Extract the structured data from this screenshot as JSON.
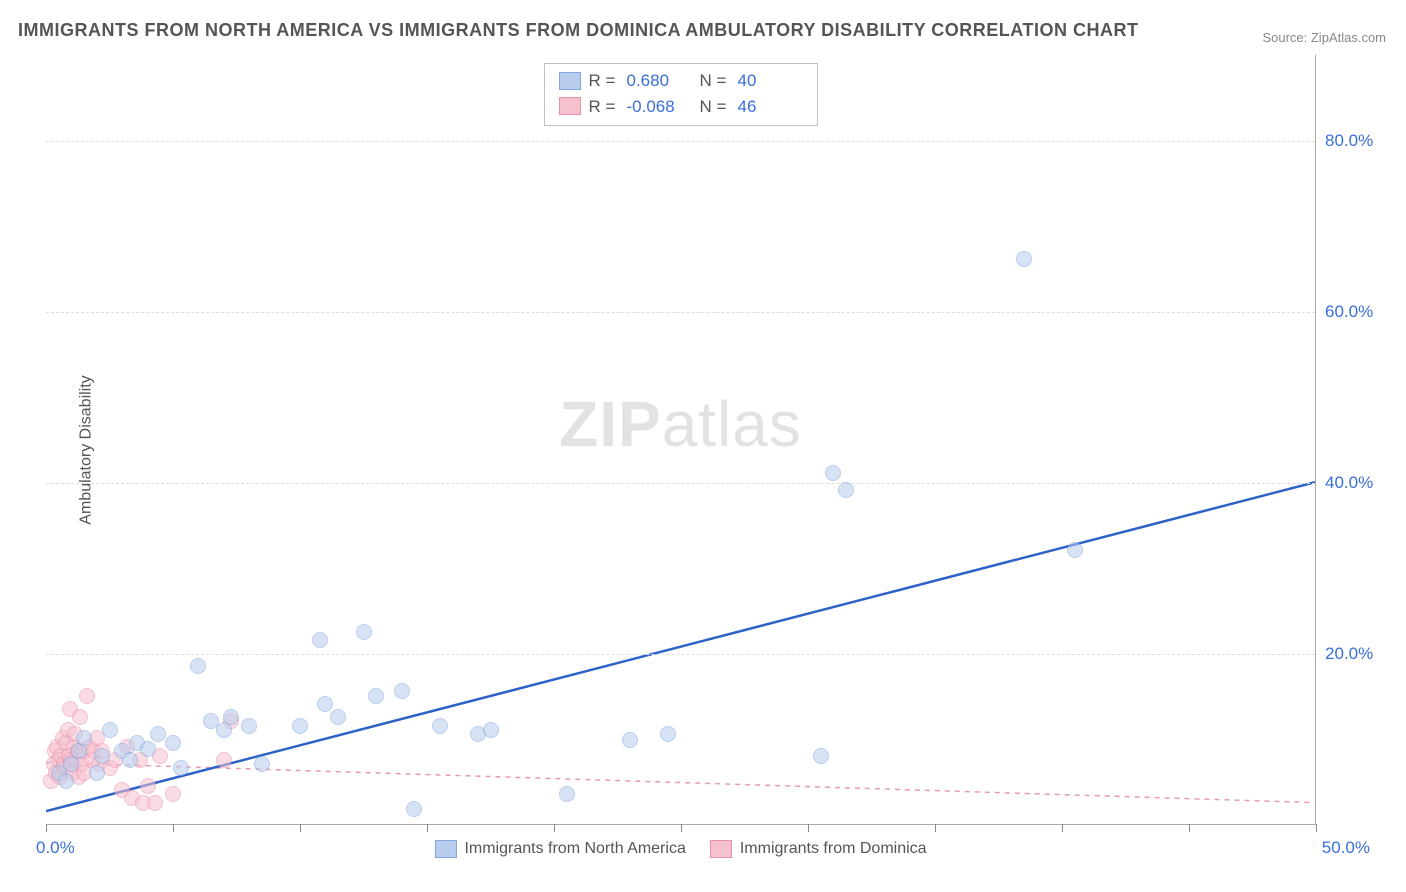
{
  "title": "IMMIGRANTS FROM NORTH AMERICA VS IMMIGRANTS FROM DOMINICA AMBULATORY DISABILITY CORRELATION CHART",
  "source": "Source: ZipAtlas.com",
  "watermark_a": "ZIP",
  "watermark_b": "atlas",
  "y_axis_label": "Ambulatory Disability",
  "chart": {
    "type": "scatter",
    "xlim": [
      0,
      50
    ],
    "ylim": [
      0,
      90
    ],
    "x_tick_step": 5,
    "y_ticks": [
      20,
      40,
      60,
      80
    ],
    "y_tick_labels": [
      "20.0%",
      "40.0%",
      "60.0%",
      "80.0%"
    ],
    "x_min_label": "0.0%",
    "x_max_label": "50.0%",
    "background_color": "#ffffff",
    "grid_color": "#dddddd",
    "axis_color": "#aaaaaa",
    "tick_label_color": "#3a6fd8",
    "label_fontsize": 16
  },
  "series": {
    "blue": {
      "label": "Immigrants from North America",
      "fill": "#b8cdee",
      "stroke": "#7fa6dd",
      "fill_opacity": 0.55,
      "marker_radius": 8,
      "R_label": "R =",
      "R": "0.680",
      "N_label": "N =",
      "N": "40",
      "trend": {
        "x1": 0,
        "y1": 1.5,
        "x2": 50,
        "y2": 40,
        "color": "#2e62c9",
        "width": 2.5,
        "dash": ""
      },
      "points": [
        [
          0.5,
          6
        ],
        [
          0.8,
          5
        ],
        [
          1.0,
          7
        ],
        [
          1.3,
          8.5
        ],
        [
          1.5,
          10
        ],
        [
          2.0,
          6
        ],
        [
          2.2,
          8
        ],
        [
          2.5,
          11
        ],
        [
          3.0,
          8.5
        ],
        [
          3.3,
          7.5
        ],
        [
          3.6,
          9.5
        ],
        [
          4.0,
          8.8
        ],
        [
          4.4,
          10.5
        ],
        [
          5.0,
          9.5
        ],
        [
          5.3,
          6.5
        ],
        [
          6.0,
          18.5
        ],
        [
          6.5,
          12
        ],
        [
          7.0,
          11
        ],
        [
          7.3,
          12.5
        ],
        [
          8.0,
          11.5
        ],
        [
          8.5,
          7
        ],
        [
          10.0,
          11.5
        ],
        [
          10.8,
          21.5
        ],
        [
          11.0,
          14
        ],
        [
          11.5,
          12.5
        ],
        [
          12.5,
          22.5
        ],
        [
          13.0,
          15
        ],
        [
          14.0,
          15.5
        ],
        [
          14.5,
          1.8
        ],
        [
          15.5,
          11.5
        ],
        [
          17.0,
          10.5
        ],
        [
          17.5,
          11
        ],
        [
          20.5,
          3.5
        ],
        [
          23.0,
          9.8
        ],
        [
          24.5,
          10.5
        ],
        [
          30.5,
          8
        ],
        [
          31.0,
          41
        ],
        [
          31.5,
          39
        ],
        [
          38.5,
          66
        ],
        [
          40.5,
          32
        ]
      ]
    },
    "pink": {
      "label": "Immigrants from Dominica",
      "fill": "#f6c1ce",
      "stroke": "#e890a8",
      "fill_opacity": 0.55,
      "marker_radius": 8,
      "R_label": "R =",
      "R": "-0.068",
      "N_label": "N =",
      "N": "46",
      "trend": {
        "x1": 0,
        "y1": 7.2,
        "x2": 50,
        "y2": 2.5,
        "color": "#e79bb0",
        "width": 1.5,
        "dash": "5,5"
      },
      "points": [
        [
          0.2,
          5
        ],
        [
          0.3,
          7
        ],
        [
          0.35,
          8.5
        ],
        [
          0.4,
          6
        ],
        [
          0.45,
          9
        ],
        [
          0.5,
          7.5
        ],
        [
          0.55,
          5.5
        ],
        [
          0.6,
          8
        ],
        [
          0.65,
          10
        ],
        [
          0.7,
          7
        ],
        [
          0.75,
          6.5
        ],
        [
          0.8,
          9.5
        ],
        [
          0.85,
          11
        ],
        [
          0.9,
          8
        ],
        [
          0.95,
          13.5
        ],
        [
          1.0,
          7.5
        ],
        [
          1.05,
          6
        ],
        [
          1.1,
          9
        ],
        [
          1.15,
          10.5
        ],
        [
          1.2,
          7.5
        ],
        [
          1.25,
          8.5
        ],
        [
          1.3,
          5.5
        ],
        [
          1.35,
          12.5
        ],
        [
          1.4,
          7
        ],
        [
          1.45,
          8.5
        ],
        [
          1.5,
          6
        ],
        [
          1.6,
          15
        ],
        [
          1.7,
          9
        ],
        [
          1.8,
          7.5
        ],
        [
          1.9,
          8.5
        ],
        [
          2.0,
          10
        ],
        [
          2.1,
          7
        ],
        [
          2.2,
          8.5
        ],
        [
          2.5,
          6.5
        ],
        [
          2.7,
          7.5
        ],
        [
          3.0,
          4
        ],
        [
          3.2,
          9
        ],
        [
          3.4,
          3
        ],
        [
          3.7,
          7.5
        ],
        [
          3.8,
          2.5
        ],
        [
          4.0,
          4.5
        ],
        [
          4.3,
          2.5
        ],
        [
          4.5,
          8
        ],
        [
          5.0,
          3.5
        ],
        [
          7.0,
          7.5
        ],
        [
          7.3,
          12
        ]
      ]
    }
  }
}
